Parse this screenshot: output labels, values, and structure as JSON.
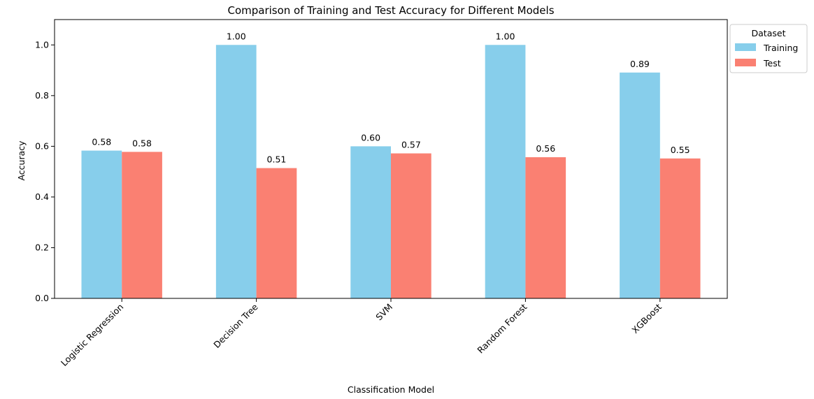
{
  "chart_data": {
    "type": "bar",
    "title": "Comparison of Training and Test Accuracy for Different Models",
    "xlabel": "Classification Model",
    "ylabel": "Accuracy",
    "categories": [
      "Logistic Regression",
      "Decision Tree",
      "SVM",
      "Random Forest",
      "XGBoost"
    ],
    "series": [
      {
        "name": "Training",
        "color": "#87CEEB",
        "values": [
          0.583,
          1.0,
          0.6,
          1.0,
          0.891
        ],
        "labels": [
          "0.58",
          "1.00",
          "0.60",
          "1.00",
          "0.89"
        ]
      },
      {
        "name": "Test",
        "color": "#FA8072",
        "values": [
          0.578,
          0.514,
          0.572,
          0.557,
          0.552
        ],
        "labels": [
          "0.58",
          "0.51",
          "0.57",
          "0.56",
          "0.55"
        ]
      }
    ],
    "ylim": [
      0,
      1.1
    ],
    "yticks": [
      "0.0",
      "0.2",
      "0.4",
      "0.6",
      "0.8",
      "1.0"
    ],
    "legend": {
      "title": "Dataset",
      "placement": "outside-top-right"
    },
    "grid": false
  }
}
